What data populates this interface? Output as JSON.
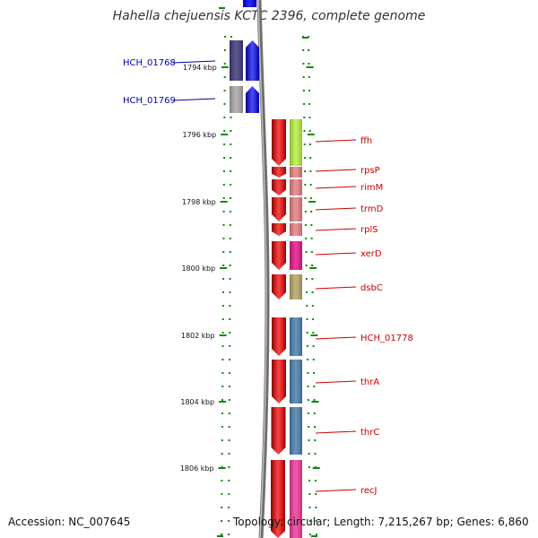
{
  "title": "Hahella chejuensis KCTC 2396, complete genome",
  "accession": "Accession: NC_007645",
  "topology": "Topology: circular; Length: 7,215,267 bp; Genes: 6,860",
  "ticks": [
    "1794 kbp",
    "1796 kbp",
    "1798 kbp",
    "1800 kbp",
    "1802 kbp",
    "1804 kbp",
    "1806 kbp"
  ],
  "genes_left": [
    {
      "label": "HCH_01768",
      "cog_color": "#3f3a78"
    },
    {
      "label": "HCH_01769",
      "cog_color": "#a8a8a8"
    }
  ],
  "genes_right": [
    {
      "label": "ffh",
      "cog_color": "#b8f040"
    },
    {
      "label": "rpsP",
      "cog_color": "#e88080"
    },
    {
      "label": "rimM",
      "cog_color": "#e88080"
    },
    {
      "label": "trmD",
      "cog_color": "#e88080"
    },
    {
      "label": "rplS",
      "cog_color": "#e88080"
    },
    {
      "label": "xerD",
      "cog_color": "#e6178c"
    },
    {
      "label": "dsbC",
      "cog_color": "#b8a868"
    },
    {
      "label": "HCH_01778",
      "cog_color": "#4a7fb0"
    },
    {
      "label": "thrA",
      "cog_color": "#4a7fb0"
    },
    {
      "label": "thrC",
      "cog_color": "#4a7fb0"
    },
    {
      "label": "recJ",
      "cog_color": "#f03c9c"
    }
  ],
  "colors": {
    "forward_strand": "#0000ff",
    "reverse_strand": "#ff0000",
    "backbone": "#888888",
    "ruler": "#0a8a0a",
    "label_left": "#0000aa",
    "label_right": "#cc0000"
  }
}
